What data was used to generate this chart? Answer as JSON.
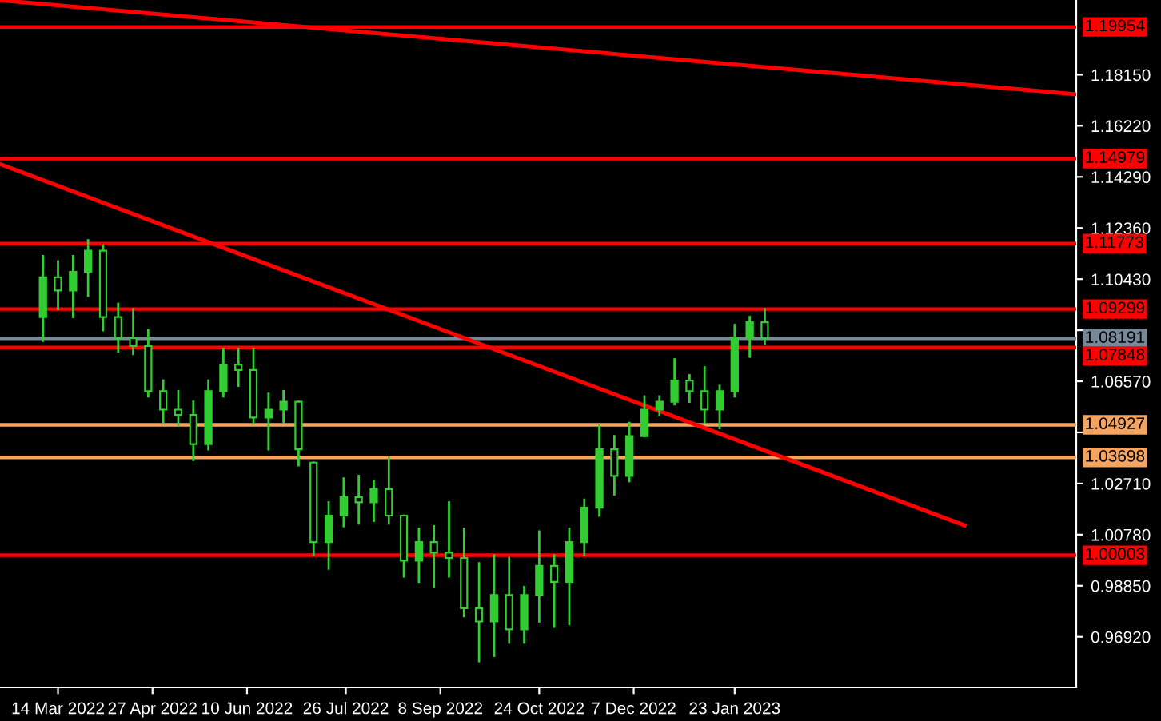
{
  "chart_data": {
    "type": "candlestick",
    "x": [
      "2022-03-07",
      "2022-03-14",
      "2022-03-21",
      "2022-03-28",
      "2022-04-04",
      "2022-04-11",
      "2022-04-18",
      "2022-04-25",
      "2022-05-02",
      "2022-05-09",
      "2022-05-16",
      "2022-05-23",
      "2022-05-30",
      "2022-06-06",
      "2022-06-13",
      "2022-06-20",
      "2022-06-27",
      "2022-07-04",
      "2022-07-11",
      "2022-07-18",
      "2022-07-25",
      "2022-08-01",
      "2022-08-08",
      "2022-08-15",
      "2022-08-22",
      "2022-08-29",
      "2022-09-05",
      "2022-09-12",
      "2022-09-19",
      "2022-09-26",
      "2022-10-03",
      "2022-10-10",
      "2022-10-17",
      "2022-10-24",
      "2022-10-31",
      "2022-11-07",
      "2022-11-14",
      "2022-11-21",
      "2022-11-28",
      "2022-12-05",
      "2022-12-12",
      "2022-12-19",
      "2022-12-26",
      "2023-01-02",
      "2023-01-09",
      "2023-01-16",
      "2023-01-23",
      "2023-01-30",
      "2023-02-06"
    ],
    "ohlc": [
      [
        1.09,
        1.113,
        1.081,
        1.105
      ],
      [
        1.105,
        1.111,
        1.093,
        1.1
      ],
      [
        1.1,
        1.113,
        1.09,
        1.107
      ],
      [
        1.107,
        1.119,
        1.098,
        1.115
      ],
      [
        1.115,
        1.117,
        1.085,
        1.09
      ],
      [
        1.09,
        1.095,
        1.077,
        1.082
      ],
      [
        1.082,
        1.093,
        1.076,
        1.079
      ],
      [
        1.079,
        1.085,
        1.06,
        1.062
      ],
      [
        1.062,
        1.066,
        1.05,
        1.055
      ],
      [
        1.055,
        1.062,
        1.049,
        1.053
      ],
      [
        1.053,
        1.058,
        1.036,
        1.042
      ],
      [
        1.042,
        1.066,
        1.04,
        1.062
      ],
      [
        1.062,
        1.078,
        1.06,
        1.072
      ],
      [
        1.072,
        1.078,
        1.064,
        1.07
      ],
      [
        1.07,
        1.078,
        1.05,
        1.052
      ],
      [
        1.052,
        1.061,
        1.04,
        1.055
      ],
      [
        1.055,
        1.062,
        1.05,
        1.058
      ],
      [
        1.058,
        1.058,
        1.034,
        1.04
      ],
      [
        1.035,
        1.035,
        1.0,
        1.005
      ],
      [
        1.005,
        1.02,
        0.995,
        1.015
      ],
      [
        1.015,
        1.029,
        1.011,
        1.022
      ],
      [
        1.022,
        1.03,
        1.012,
        1.02
      ],
      [
        1.02,
        1.028,
        1.013,
        1.025
      ],
      [
        1.025,
        1.037,
        1.012,
        1.015
      ],
      [
        1.015,
        1.015,
        0.992,
        0.998
      ],
      [
        0.998,
        1.01,
        0.99,
        1.005
      ],
      [
        1.005,
        1.011,
        0.988,
        1.001
      ],
      [
        1.001,
        1.02,
        0.992,
        0.999
      ],
      [
        0.999,
        1.01,
        0.977,
        0.98
      ],
      [
        0.98,
        0.997,
        0.96,
        0.975
      ],
      [
        0.975,
        1.0,
        0.962,
        0.985
      ],
      [
        0.985,
        0.999,
        0.967,
        0.972
      ],
      [
        0.972,
        0.988,
        0.967,
        0.985
      ],
      [
        0.985,
        1.009,
        0.975,
        0.996
      ],
      [
        0.996,
        1.0,
        0.973,
        0.99
      ],
      [
        0.99,
        1.01,
        0.974,
        1.005
      ],
      [
        1.005,
        1.021,
        1.0,
        1.018
      ],
      [
        1.018,
        1.049,
        1.015,
        1.04
      ],
      [
        1.04,
        1.045,
        1.023,
        1.03
      ],
      [
        1.03,
        1.05,
        1.028,
        1.045
      ],
      [
        1.045,
        1.06,
        1.045,
        1.055
      ],
      [
        1.055,
        1.06,
        1.053,
        1.058
      ],
      [
        1.058,
        1.074,
        1.057,
        1.066
      ],
      [
        1.066,
        1.068,
        1.058,
        1.062
      ],
      [
        1.062,
        1.071,
        1.05,
        1.055
      ],
      [
        1.055,
        1.064,
        1.048,
        1.062
      ],
      [
        1.062,
        1.087,
        1.06,
        1.082
      ],
      [
        1.082,
        1.09,
        1.075,
        1.088
      ],
      [
        1.088,
        1.093,
        1.08,
        1.082
      ]
    ],
    "color": "#32cd32",
    "series": [
      {
        "type": "line",
        "x": [
          "2022-02-15",
          "2023-07-01"
        ],
        "values": [
          1.2096,
          1.1741
        ],
        "color": "#ff0000"
      },
      {
        "type": "line",
        "x": [
          "2022-02-15",
          "2023-05-10"
        ],
        "values": [
          1.1477,
          1.0113
        ],
        "color": "#ff0000"
      }
    ],
    "xlim": [
      "2022-02-15",
      "2023-07-01"
    ],
    "xticks": [
      {
        "value": "2022-03-14",
        "label": "14 Mar 2022"
      },
      {
        "value": "2022-04-27",
        "label": "27 Apr 2022"
      },
      {
        "value": "2022-06-10",
        "label": "10 Jun 2022"
      },
      {
        "value": "2022-07-26",
        "label": "26 Jul 2022"
      },
      {
        "value": "2022-09-08",
        "label": "8 Sep 2022"
      },
      {
        "value": "2022-10-24",
        "label": "24 Oct 2022"
      },
      {
        "value": "2022-12-07",
        "label": "7 Dec 2022"
      },
      {
        "value": "2023-01-23",
        "label": "23 Jan 2023"
      }
    ],
    "ylim": [
      0.9501,
      1.2097
    ],
    "yticks": [
      {
        "value": 1.1815,
        "label": "1.18150"
      },
      {
        "value": 1.1622,
        "label": "1.16220"
      },
      {
        "value": 1.1429,
        "label": "1.14290"
      },
      {
        "value": 1.1236,
        "label": "1.12360"
      },
      {
        "value": 1.1043,
        "label": "1.10430"
      },
      {
        "value": 1.085,
        "label": null
      },
      {
        "value": 1.0657,
        "label": "1.06570"
      },
      {
        "value": 1.0464,
        "label": null
      },
      {
        "value": 1.0271,
        "label": "1.02710"
      },
      {
        "value": 1.0078,
        "label": "1.00780"
      },
      {
        "value": 0.9885,
        "label": "0.98850"
      },
      {
        "value": 0.9692,
        "label": "0.96920"
      }
    ],
    "ref_lines": [
      {
        "axis": "y",
        "value": 1.19954,
        "label": "1.19954",
        "color": "#ff0000"
      },
      {
        "axis": "y",
        "value": 1.14979,
        "label": "1.14979",
        "color": "#ff0000"
      },
      {
        "axis": "y",
        "value": 1.11773,
        "label": "1.11773",
        "color": "#ff0000"
      },
      {
        "axis": "y",
        "value": 1.09299,
        "label": "1.09299",
        "color": "#ff0000"
      },
      {
        "axis": "y",
        "value": 1.08191,
        "label": "1.08191",
        "color": "#778899"
      },
      {
        "axis": "y",
        "value": 1.07848,
        "label": "1.07848",
        "color": "#ff0000"
      },
      {
        "axis": "y",
        "value": 1.04927,
        "label": "1.04927",
        "color": "#f4a460"
      },
      {
        "axis": "y",
        "value": 1.03698,
        "label": "1.03698",
        "color": "#f4a460"
      },
      {
        "axis": "y",
        "value": 1.00003,
        "label": "1.00003",
        "color": "#ff0000"
      }
    ],
    "grid": false,
    "legend": false
  }
}
